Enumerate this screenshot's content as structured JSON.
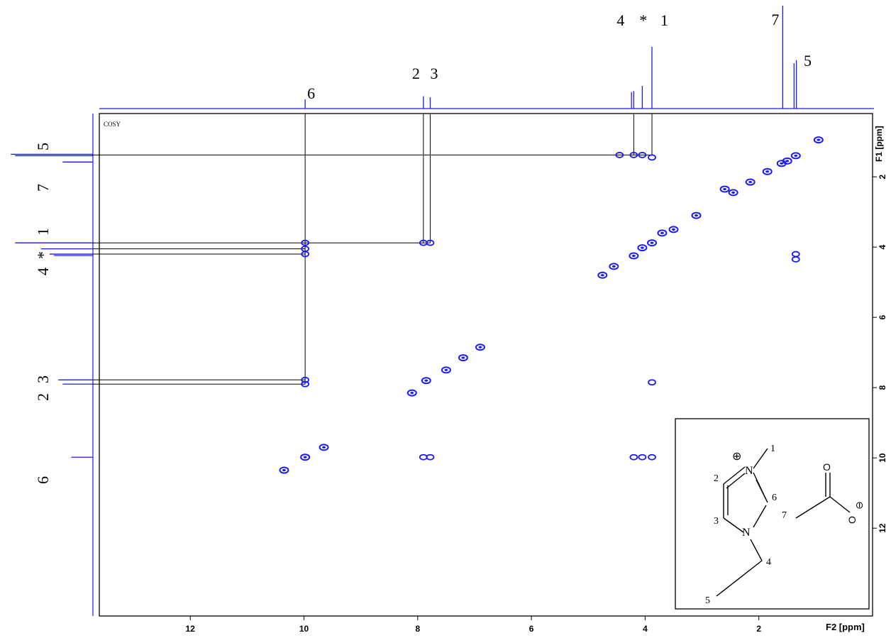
{
  "chart_data": {
    "type": "scatter",
    "title": "COSY",
    "xlabel": "F2 [ppm]",
    "ylabel": "F1 [ppm]",
    "xlim": [
      13.6,
      0
    ],
    "ylim": [
      0.2,
      14.5
    ],
    "x_ticks": [
      "12",
      "10",
      "8",
      "6",
      "4",
      "2"
    ],
    "y_ticks": [
      "2",
      "4",
      "6",
      "8",
      "10",
      "12"
    ],
    "grid": false,
    "peak_labels_top": [
      {
        "label": "6",
        "ppm": 9.98
      },
      {
        "label": "2",
        "ppm": 7.9
      },
      {
        "label": "3",
        "ppm": 7.78
      },
      {
        "label": "4",
        "ppm": 4.2
      },
      {
        "label": "*",
        "ppm": 4.05
      },
      {
        "label": "1",
        "ppm": 3.88
      },
      {
        "label": "7",
        "ppm": 1.58
      },
      {
        "label": "5",
        "ppm": 1.36
      }
    ],
    "peak_labels_left": [
      {
        "label": "5",
        "ppm": 1.38
      },
      {
        "label": "7",
        "ppm": 1.85
      },
      {
        "label": "1",
        "ppm": 3.2
      },
      {
        "label": "*",
        "ppm": 3.8
      },
      {
        "label": "4",
        "ppm": 4.3
      },
      {
        "label": "2",
        "ppm": 7.55
      },
      {
        "label": "3",
        "ppm": 7.05
      },
      {
        "label": "6",
        "ppm": 10.0
      }
    ],
    "f2_1d_spectrum": [
      {
        "ppm": 9.98,
        "height": 0.09
      },
      {
        "ppm": 7.9,
        "height": 0.12
      },
      {
        "ppm": 7.78,
        "height": 0.11
      },
      {
        "ppm": 4.24,
        "height": 0.16
      },
      {
        "ppm": 4.2,
        "height": 0.17
      },
      {
        "ppm": 4.05,
        "height": 0.22
      },
      {
        "ppm": 3.88,
        "height": 0.6
      },
      {
        "ppm": 1.58,
        "height": 1.0
      },
      {
        "ppm": 1.38,
        "height": 0.44
      },
      {
        "ppm": 1.34,
        "height": 0.47
      }
    ],
    "f1_1d_spectrum": [
      {
        "ppm": 1.36,
        "height": 0.95
      },
      {
        "ppm": 1.4,
        "height": 0.9
      },
      {
        "ppm": 1.58,
        "height": 0.35
      },
      {
        "ppm": 3.88,
        "height": 0.9
      },
      {
        "ppm": 4.05,
        "height": 0.6
      },
      {
        "ppm": 4.2,
        "height": 0.5
      },
      {
        "ppm": 4.24,
        "height": 0.45
      },
      {
        "ppm": 7.78,
        "height": 0.4
      },
      {
        "ppm": 7.9,
        "height": 0.35
      },
      {
        "ppm": 9.98,
        "height": 0.25
      }
    ],
    "diagonal": [
      {
        "x": 0.95,
        "y": 0.95
      },
      {
        "x": 1.35,
        "y": 1.4
      },
      {
        "x": 1.5,
        "y": 1.55
      },
      {
        "x": 1.6,
        "y": 1.62
      },
      {
        "x": 1.85,
        "y": 1.85
      },
      {
        "x": 2.15,
        "y": 2.15
      },
      {
        "x": 2.45,
        "y": 2.45
      },
      {
        "x": 2.6,
        "y": 2.35
      },
      {
        "x": 3.1,
        "y": 3.1
      },
      {
        "x": 3.5,
        "y": 3.5
      },
      {
        "x": 3.7,
        "y": 3.6
      },
      {
        "x": 3.88,
        "y": 3.88
      },
      {
        "x": 4.05,
        "y": 4.02
      },
      {
        "x": 4.2,
        "y": 4.25
      },
      {
        "x": 4.55,
        "y": 4.55
      },
      {
        "x": 4.75,
        "y": 4.8
      },
      {
        "x": 6.9,
        "y": 6.85
      },
      {
        "x": 7.2,
        "y": 7.15
      },
      {
        "x": 7.5,
        "y": 7.5
      },
      {
        "x": 7.85,
        "y": 7.8
      },
      {
        "x": 8.1,
        "y": 8.15
      },
      {
        "x": 9.65,
        "y": 9.7
      },
      {
        "x": 9.98,
        "y": 9.98
      },
      {
        "x": 10.35,
        "y": 10.35
      }
    ],
    "cross_peaks": [
      {
        "x": 4.2,
        "y": 1.38
      },
      {
        "x": 4.05,
        "y": 1.38
      },
      {
        "x": 4.45,
        "y": 1.38
      },
      {
        "x": 3.88,
        "y": 1.45
      },
      {
        "x": 1.35,
        "y": 4.2
      },
      {
        "x": 1.35,
        "y": 4.35
      },
      {
        "x": 9.98,
        "y": 3.88
      },
      {
        "x": 9.98,
        "y": 4.05
      },
      {
        "x": 9.98,
        "y": 4.2
      },
      {
        "x": 7.9,
        "y": 3.88
      },
      {
        "x": 7.78,
        "y": 3.88
      },
      {
        "x": 9.98,
        "y": 7.78
      },
      {
        "x": 9.98,
        "y": 7.9
      },
      {
        "x": 3.88,
        "y": 7.85
      },
      {
        "x": 7.9,
        "y": 9.98
      },
      {
        "x": 7.78,
        "y": 9.98
      },
      {
        "x": 4.2,
        "y": 9.98
      },
      {
        "x": 4.05,
        "y": 9.98
      },
      {
        "x": 3.88,
        "y": 9.98
      }
    ],
    "guide_lines_horizontal": [
      {
        "y": 1.38,
        "from_x": 13.6,
        "to_x": 3.88
      },
      {
        "y": 3.88,
        "from_x": 13.6,
        "to_x": 7.78
      },
      {
        "y": 4.05,
        "from_x": 13.6,
        "to_x": 9.98
      },
      {
        "y": 4.2,
        "from_x": 13.6,
        "to_x": 9.98
      },
      {
        "y": 7.78,
        "from_x": 13.6,
        "to_x": 9.98
      },
      {
        "y": 7.9,
        "from_x": 13.6,
        "to_x": 9.98
      }
    ],
    "guide_lines_vertical": [
      {
        "x": 9.98,
        "from_y": 0.2,
        "to_y": 7.9
      },
      {
        "x": 7.9,
        "from_y": 0.2,
        "to_y": 3.88
      },
      {
        "x": 7.78,
        "from_y": 0.2,
        "to_y": 3.88
      },
      {
        "x": 4.2,
        "from_y": 0.2,
        "to_y": 1.38
      },
      {
        "x": 3.88,
        "from_y": 0.2,
        "to_y": 1.38
      }
    ]
  },
  "molecule": {
    "labels": [
      "1",
      "2",
      "3",
      "4",
      "5",
      "6",
      "7"
    ],
    "charge_plus": "⊕",
    "charge_minus": "⊖",
    "atom_n_top": "N",
    "atom_n_bottom": "N",
    "atom_o_top": "O",
    "atom_o_right": "O"
  },
  "colors": {
    "spectrum": "#1a1aff",
    "guide": "#000000",
    "frame": "#000000"
  }
}
